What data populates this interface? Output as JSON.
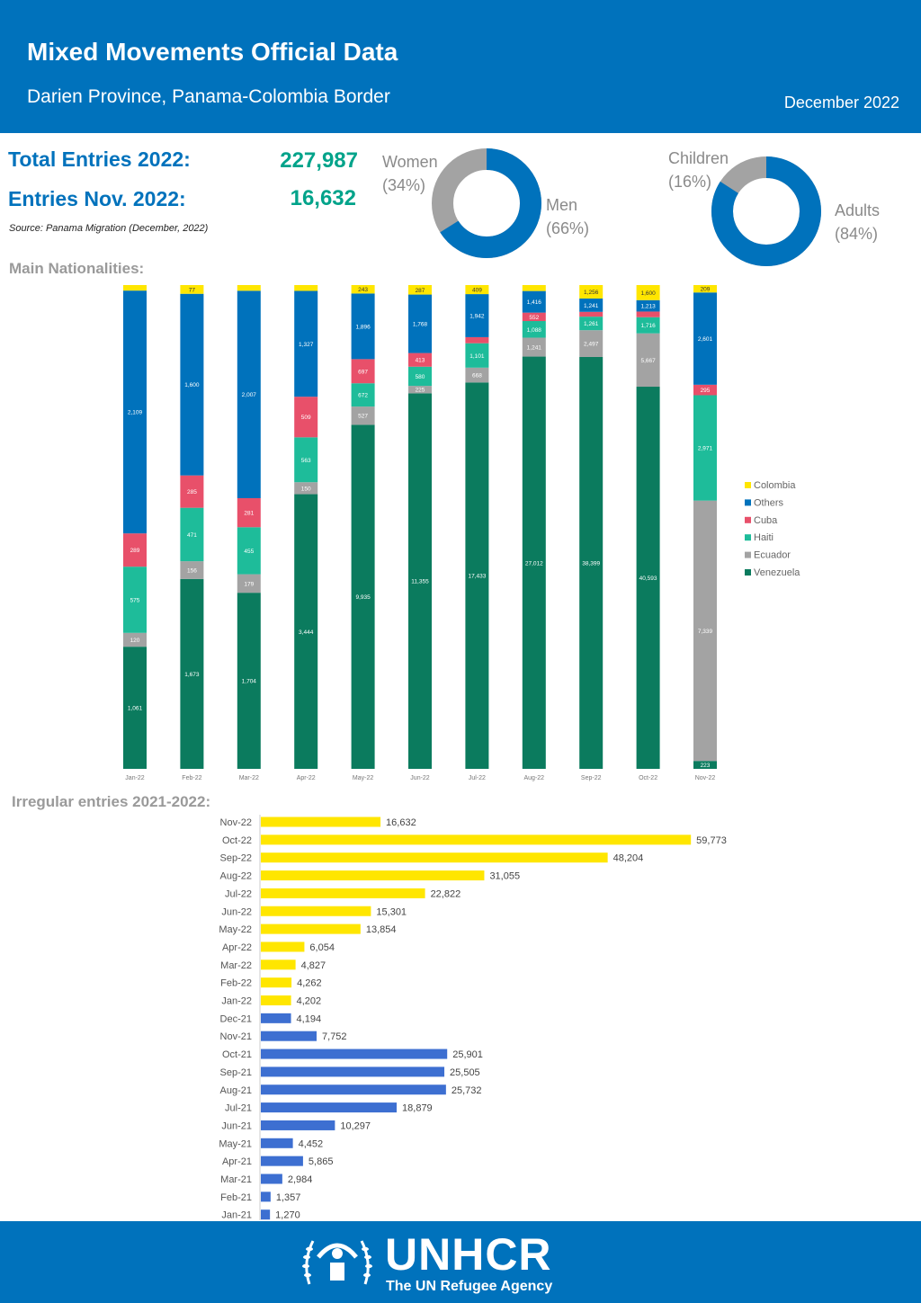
{
  "header": {
    "title": "Mixed Movements Official Data",
    "subtitle": "Darien Province, Panama-Colombia Border",
    "date": "December 2022"
  },
  "stats": {
    "total_label": "Total Entries 2022:",
    "total_value": "227,987",
    "nov_label": "Entries Nov. 2022:",
    "nov_value": "16,632",
    "source": "Source: Panama Migration (December, 2022)"
  },
  "colors": {
    "blue": "#0072bc",
    "green": "#0b7b5e",
    "teal": "#1ebc9a",
    "pink": "#e8506a",
    "gray": "#a3a3a3",
    "yellow": "#ffe600",
    "bar_blue": "#3d6fd1"
  },
  "gender": {
    "women_label": "Women",
    "women_pct": "(34%)",
    "men_label": "Men",
    "men_pct": "(66%)",
    "women_value": 34,
    "men_value": 66
  },
  "age": {
    "children_label": "Children",
    "children_pct": "(16%)",
    "adults_label": "Adults",
    "adults_pct": "(84%)",
    "children_value": 16,
    "adults_value": 84
  },
  "sections": {
    "nationalities": "Main Nationalities:",
    "irregular": "Irregular entries 2021-2022:"
  },
  "chart_data": [
    {
      "type": "bar",
      "stacked": true,
      "normalized": true,
      "categories": [
        "Jan-22",
        "Feb-22",
        "Mar-22",
        "Apr-22",
        "May-22",
        "Jun-22",
        "Jul-22",
        "Aug-22",
        "Sep-22",
        "Oct-22",
        "Nov-22"
      ],
      "series": [
        {
          "name": "Venezuela",
          "values": [
            1061,
            1673,
            1704,
            3444,
            9935,
            11355,
            17433,
            27012,
            38399,
            40593,
            223
          ]
        },
        {
          "name": "Ecuador",
          "values": [
            120,
            156,
            179,
            150,
            527,
            225,
            668,
            1241,
            2497,
            5667,
            7339
          ]
        },
        {
          "name": "Haiti",
          "values": [
            575,
            471,
            455,
            563,
            672,
            580,
            1101,
            1088,
            1261,
            1716,
            2971
          ]
        },
        {
          "name": "Cuba",
          "values": [
            289,
            285,
            281,
            509,
            697,
            413,
            274,
            552,
            450,
            600,
            295
          ]
        },
        {
          "name": "Others",
          "values": [
            2109,
            1600,
            2007,
            1327,
            1896,
            1768,
            1942,
            1416,
            1241,
            1213,
            2601
          ]
        },
        {
          "name": "Colombia",
          "values": [
            48,
            77,
            55,
            73,
            243,
            287,
            409,
            390,
            1256,
            1600,
            209
          ]
        }
      ],
      "labels": {
        "Venezuela": [
          "1,061",
          "1,673",
          "1,704",
          "3,444",
          "9,935",
          "11,355",
          "17,433",
          "27,012",
          "38,399",
          "40,593",
          "223"
        ],
        "Ecuador": [
          "120",
          "156",
          "179",
          "150",
          "527",
          "225",
          "668",
          "1,241",
          "2,497",
          "5,667",
          "7,339"
        ],
        "Haiti": [
          "575",
          "471",
          "455",
          "563",
          "672",
          "580",
          "1,101",
          "1,088",
          "1,261",
          "1,716",
          "2,971"
        ],
        "Cuba": [
          "289",
          "285",
          "281",
          "509",
          "697",
          "413",
          "274",
          "552",
          "450",
          "600",
          "295"
        ],
        "Others": [
          "2,109",
          "1,600",
          "2,007",
          "1,327",
          "1,896",
          "1,768",
          "1,942",
          "1,416",
          "1,241",
          "1,213",
          "2,601"
        ],
        "Colombia": [
          "48",
          "77",
          "55",
          "73",
          "243",
          "287",
          "409",
          "390",
          "1,256",
          "1,600",
          "209"
        ]
      },
      "legend": [
        "Colombia",
        "Others",
        "Cuba",
        "Haiti",
        "Ecuador",
        "Venezuela"
      ],
      "legend_position": "right"
    },
    {
      "type": "bar",
      "orientation": "horizontal",
      "categories": [
        "Nov-22",
        "Oct-22",
        "Sep-22",
        "Aug-22",
        "Jul-22",
        "Jun-22",
        "May-22",
        "Apr-22",
        "Mar-22",
        "Feb-22",
        "Jan-22",
        "Dec-21",
        "Nov-21",
        "Oct-21",
        "Sep-21",
        "Aug-21",
        "Jul-21",
        "Jun-21",
        "May-21",
        "Apr-21",
        "Mar-21",
        "Feb-21",
        "Jan-21"
      ],
      "values": [
        16632,
        59773,
        48204,
        31055,
        22822,
        15301,
        13854,
        6054,
        4827,
        4262,
        4202,
        4194,
        7752,
        25901,
        25505,
        25732,
        18879,
        10297,
        4452,
        5865,
        2984,
        1357,
        1270
      ],
      "labels": [
        "16,632",
        "59,773",
        "48,204",
        "31,055",
        "22,822",
        "15,301",
        "13,854",
        "6,054",
        "4,827",
        "4,262",
        "4,202",
        "4,194",
        "7,752",
        "25,901",
        "25,505",
        "25,732",
        "18,879",
        "10,297",
        "4,452",
        "5,865",
        "2,984",
        "1,357",
        "1,270"
      ],
      "highlight_count": 11
    }
  ],
  "footer": {
    "brand": "UNHCR",
    "tagline": "The UN Refugee Agency",
    "emblem": "unhcr-emblem-icon"
  }
}
